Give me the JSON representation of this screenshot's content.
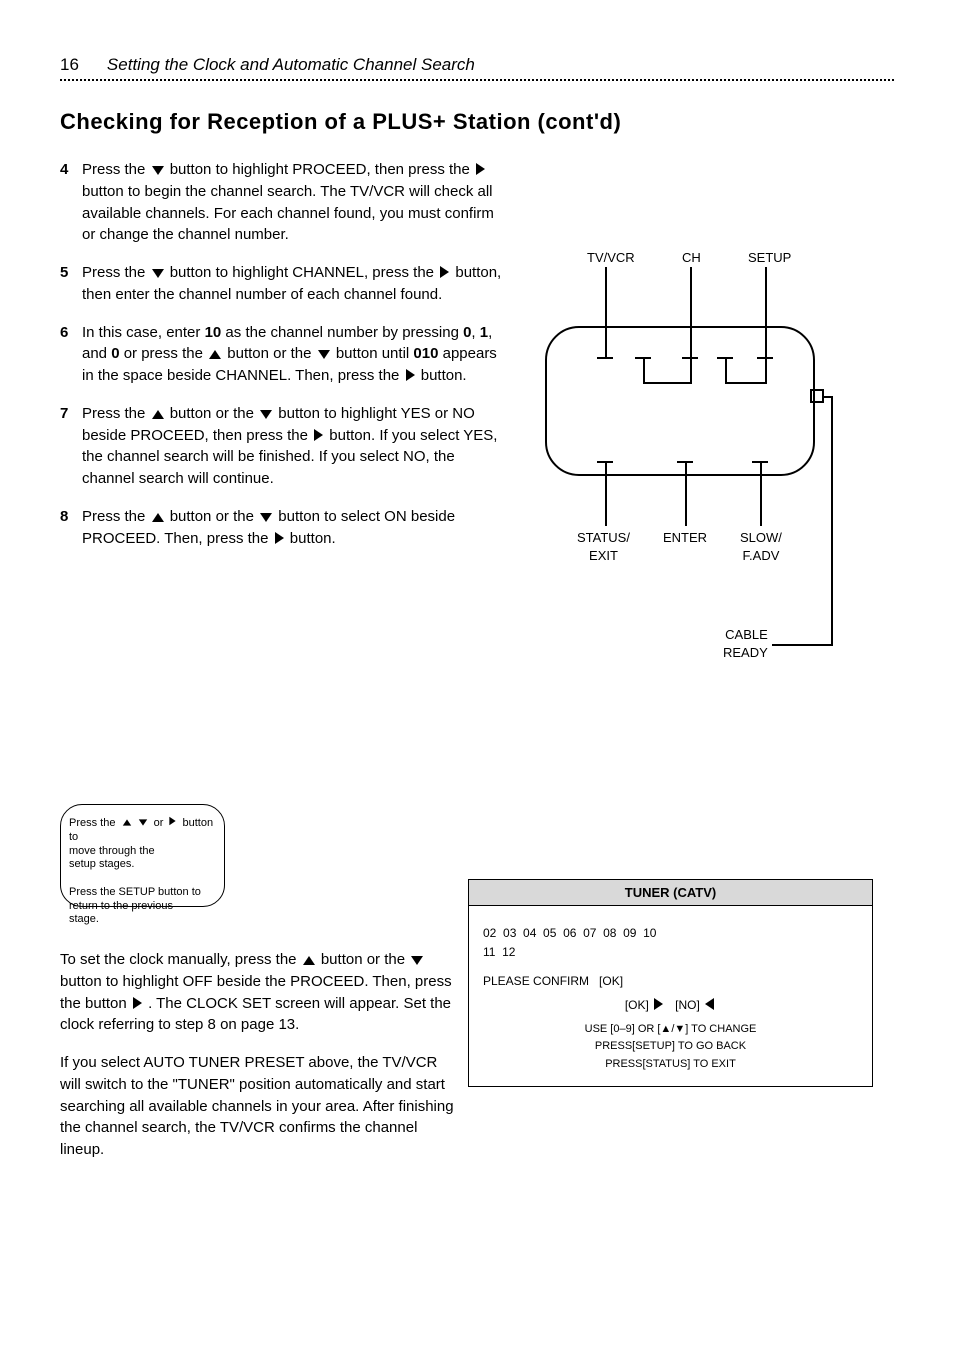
{
  "page_number": "16",
  "section_title": "Setting the Clock and Automatic Channel Search",
  "heading": "Checking for Reception of a PLUS+ Station (cont'd)",
  "steps": [
    {
      "num": "4",
      "html": "Press the {down} button to highlight PROCEED, then press the {right} button to begin the channel search. The TV/VCR will check all available channels. For each channel found, you must confirm or change the channel number."
    },
    {
      "num": "5",
      "html": "Press the {down} button to highlight CHANNEL, press the {right} button, then enter the channel number of each channel found."
    },
    {
      "num": "6",
      "html": "In this case, enter <b>10</b> as the channel number by pressing <b>0</b>, <b>1</b>, and <b>0</b> or press the {up} button or the {down} button until <b>010</b> appears in the space beside CHANNEL. Then, press the {right} button."
    },
    {
      "num": "7",
      "html": "Press the {up} button or the {down} button to highlight YES or NO beside PROCEED, then press the {right} button. If you select YES, the channel search will be finished. If you select NO, the channel search will continue."
    },
    {
      "num": "8",
      "html": "Press the {up} button or the {down} button to select ON beside PROCEED. Then, press the {right} button."
    }
  ],
  "hints_lines": [
    "Press the {up}{down} or {right} button to",
    "move through the",
    "setup stages.",
    "",
    "Press the SETUP button to",
    "return to the previous",
    "stage."
  ],
  "bottom_paras": [
    "To set the clock manually, press the {up} button or the {down} button to highlight OFF beside the PROCEED. Then, press the button {right} . The CLOCK SET screen will appear. Set the clock referring to step 8 on page 13.",
    "If you select AUTO TUNER PRESET above, the TV/VCR will switch to the \"TUNER\" position automatically and start searching all available channels in your area. After finishing the channel search, the TV/VCR confirms the channel lineup."
  ],
  "diagram": {
    "top_labels": [
      "TV/VCR",
      "CH",
      "SETUP"
    ],
    "bottom_labels": [
      "STATUS/\nEXIT",
      "ENTER",
      "SLOW/\nF.ADV"
    ],
    "cable_label": "CABLE\nREADY"
  },
  "tuner": {
    "title": "TUNER (CATV)",
    "lines": [
      "02&nbsp;&nbsp;03&nbsp;&nbsp;04&nbsp;&nbsp;05&nbsp;&nbsp;06&nbsp;&nbsp;07&nbsp;&nbsp;08&nbsp;&nbsp;09&nbsp;&nbsp;10",
      "11&nbsp;&nbsp;12"
    ],
    "confirm_line": "PLEASE CONFIRM&nbsp;&nbsp;&nbsp;[OK]",
    "legend": "[OK] {right}&nbsp;&nbsp;&nbsp;[NO] {left}",
    "footer": [
      "USE [0–9] OR [▲/▼] TO CHANGE",
      "PRESS[SETUP] TO GO BACK",
      "PRESS[STATUS] TO EXIT"
    ]
  }
}
